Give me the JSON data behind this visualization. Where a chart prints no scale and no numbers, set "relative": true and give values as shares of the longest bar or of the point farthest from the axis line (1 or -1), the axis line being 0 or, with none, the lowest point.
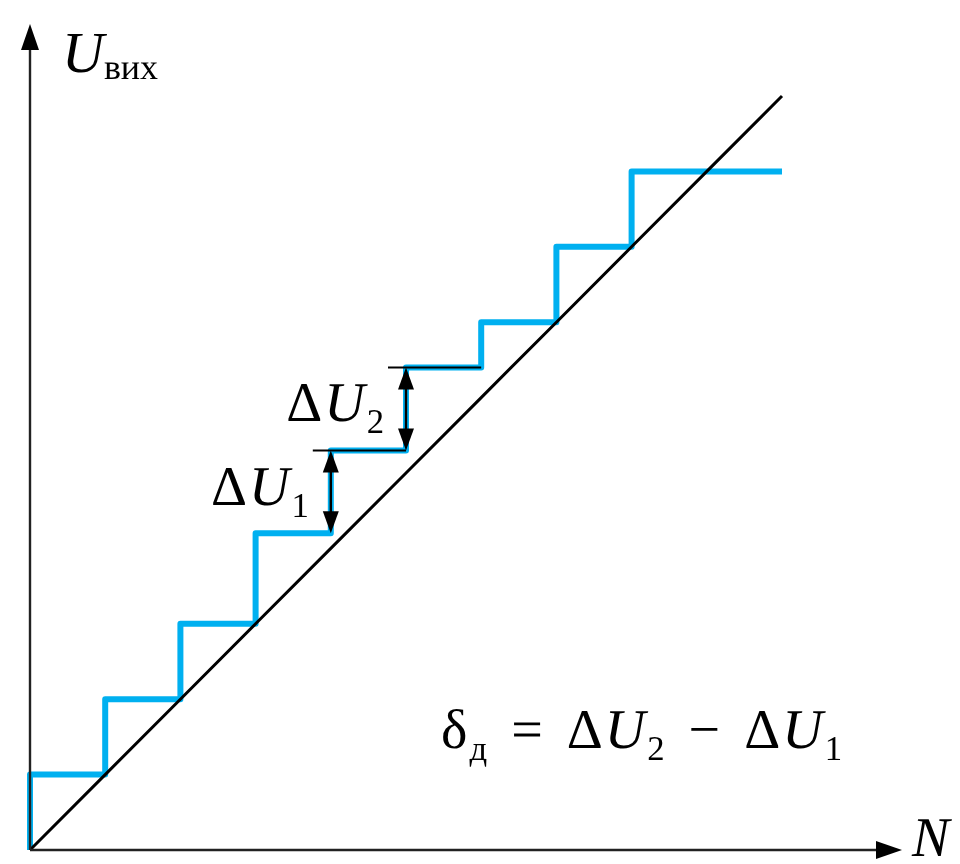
{
  "chart_data": {
    "type": "line",
    "xlabel": "N",
    "ylabel": "U$_{вих}$",
    "relative": true,
    "marker": "none",
    "grid": false,
    "legend": false,
    "categories": [
      null,
      null,
      null,
      null,
      null,
      null,
      null,
      null,
      null,
      null,
      null
    ],
    "series": [
      {
        "type": "line",
        "color": "#000000",
        "values": [
          0,
          0.1,
          0.2,
          0.3,
          0.4,
          0.5,
          0.6,
          0.7,
          0.8,
          0.9,
          1
        ]
      },
      {
        "type": "step",
        "color": "#00b0f0",
        "values": [
          0,
          0.1,
          0.2,
          0.3,
          0.42,
          0.53,
          0.64,
          0.7,
          0.8,
          0.9,
          0.9
        ]
      }
    ],
    "annotations": [
      "ΔU$_{2}$",
      "ΔU$_{1}$",
      "δ$_{д}$ = ΔU$_{2}$ − ΔU$_{1}$"
    ]
  }
}
